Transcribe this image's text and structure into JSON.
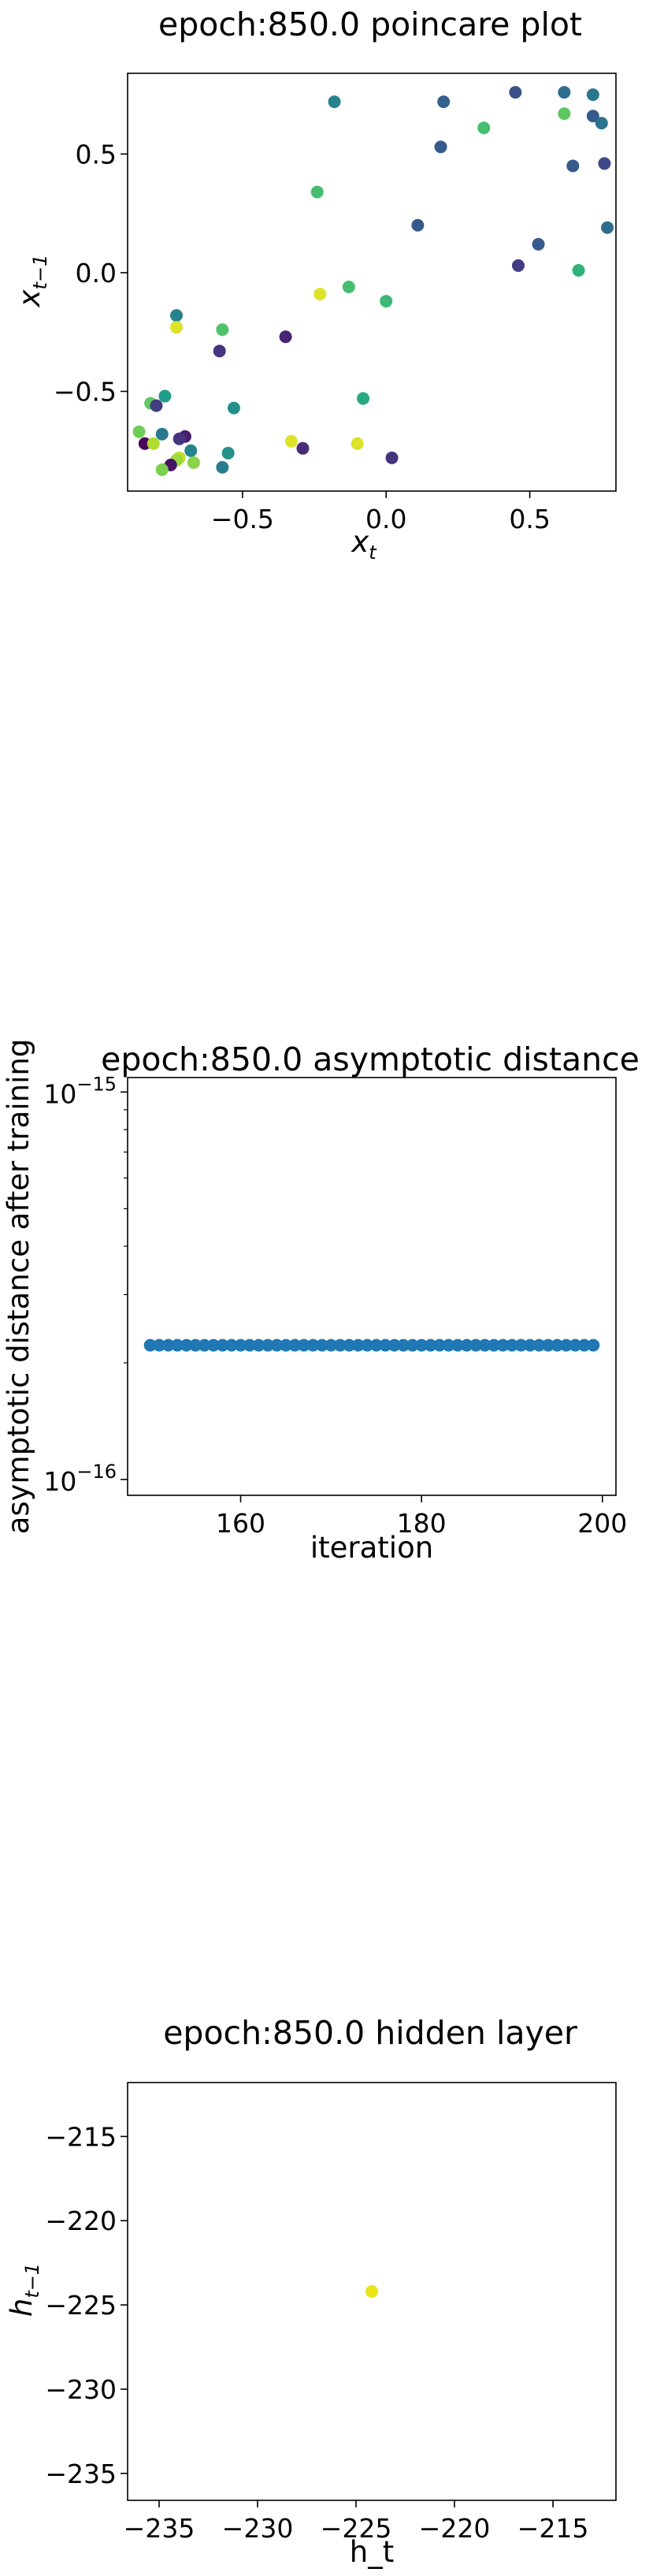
{
  "chart_data": [
    {
      "type": "scatter",
      "title": "epoch:850.0 poincare plot",
      "xlabel": "x",
      "xlabel_sub": "t",
      "ylabel": "x",
      "ylabel_sub": "t−1",
      "xlim": [
        -0.9,
        0.8
      ],
      "ylim": [
        -0.92,
        0.84
      ],
      "xticks": [
        -0.5,
        0.0,
        0.5
      ],
      "xtick_labels": [
        "−0.5",
        "0.0",
        "0.5"
      ],
      "yticks": [
        -0.5,
        0.0,
        0.5
      ],
      "ytick_labels": [
        "−0.5",
        "0.0",
        "0.5"
      ],
      "colormap": "viridis",
      "points": [
        {
          "x": -0.18,
          "y": 0.72,
          "c": 0.45
        },
        {
          "x": 0.2,
          "y": 0.72,
          "c": 0.3
        },
        {
          "x": 0.45,
          "y": 0.76,
          "c": 0.25
        },
        {
          "x": 0.62,
          "y": 0.76,
          "c": 0.35
        },
        {
          "x": 0.72,
          "y": 0.75,
          "c": 0.4
        },
        {
          "x": 0.34,
          "y": 0.61,
          "c": 0.7
        },
        {
          "x": 0.62,
          "y": 0.67,
          "c": 0.75
        },
        {
          "x": 0.72,
          "y": 0.66,
          "c": 0.28
        },
        {
          "x": 0.75,
          "y": 0.63,
          "c": 0.38
        },
        {
          "x": 0.19,
          "y": 0.53,
          "c": 0.28
        },
        {
          "x": 0.65,
          "y": 0.45,
          "c": 0.28
        },
        {
          "x": 0.76,
          "y": 0.46,
          "c": 0.22
        },
        {
          "x": -0.24,
          "y": 0.34,
          "c": 0.7
        },
        {
          "x": 0.11,
          "y": 0.2,
          "c": 0.28
        },
        {
          "x": 0.77,
          "y": 0.19,
          "c": 0.35
        },
        {
          "x": 0.53,
          "y": 0.12,
          "c": 0.28
        },
        {
          "x": 0.46,
          "y": 0.03,
          "c": 0.18
        },
        {
          "x": 0.67,
          "y": 0.01,
          "c": 0.65
        },
        {
          "x": -0.13,
          "y": -0.06,
          "c": 0.7
        },
        {
          "x": -0.23,
          "y": -0.09,
          "c": 0.95
        },
        {
          "x": 0.0,
          "y": -0.12,
          "c": 0.68
        },
        {
          "x": -0.73,
          "y": -0.18,
          "c": 0.45
        },
        {
          "x": -0.73,
          "y": -0.23,
          "c": 0.95
        },
        {
          "x": -0.57,
          "y": -0.24,
          "c": 0.72
        },
        {
          "x": -0.35,
          "y": -0.27,
          "c": 0.1
        },
        {
          "x": -0.58,
          "y": -0.33,
          "c": 0.15
        },
        {
          "x": -0.77,
          "y": -0.52,
          "c": 0.55
        },
        {
          "x": -0.08,
          "y": -0.53,
          "c": 0.6
        },
        {
          "x": -0.82,
          "y": -0.55,
          "c": 0.75
        },
        {
          "x": -0.8,
          "y": -0.56,
          "c": 0.18
        },
        {
          "x": -0.53,
          "y": -0.57,
          "c": 0.5
        },
        {
          "x": -0.86,
          "y": -0.67,
          "c": 0.78
        },
        {
          "x": -0.78,
          "y": -0.68,
          "c": 0.4
        },
        {
          "x": -0.7,
          "y": -0.69,
          "c": 0.08
        },
        {
          "x": -0.72,
          "y": -0.7,
          "c": 0.15
        },
        {
          "x": -0.84,
          "y": -0.72,
          "c": 0.02
        },
        {
          "x": -0.81,
          "y": -0.72,
          "c": 0.88
        },
        {
          "x": -0.33,
          "y": -0.71,
          "c": 0.95
        },
        {
          "x": -0.1,
          "y": -0.72,
          "c": 0.95
        },
        {
          "x": -0.29,
          "y": -0.74,
          "c": 0.12
        },
        {
          "x": -0.68,
          "y": -0.75,
          "c": 0.45
        },
        {
          "x": -0.55,
          "y": -0.76,
          "c": 0.5
        },
        {
          "x": -0.72,
          "y": -0.78,
          "c": 0.9
        },
        {
          "x": 0.02,
          "y": -0.78,
          "c": 0.15
        },
        {
          "x": -0.73,
          "y": -0.79,
          "c": 0.85
        },
        {
          "x": -0.67,
          "y": -0.8,
          "c": 0.82
        },
        {
          "x": -0.75,
          "y": -0.81,
          "c": 0.05
        },
        {
          "x": -0.57,
          "y": -0.82,
          "c": 0.42
        },
        {
          "x": -0.78,
          "y": -0.83,
          "c": 0.8
        }
      ]
    },
    {
      "type": "scatter",
      "title": "epoch:850.0 asymptotic distance",
      "xlabel": "iteration",
      "ylabel": "asymptotic distance after training",
      "yscale": "log",
      "xlim": [
        147.5,
        201.5
      ],
      "ylim": [
        9.1e-17,
        1.09e-15
      ],
      "xticks": [
        160,
        180,
        200
      ],
      "xtick_labels": [
        "160",
        "180",
        "200"
      ],
      "yticks": [
        1e-16,
        1e-15
      ],
      "ytick_base": "10",
      "ytick_exps": [
        "−16",
        "−15"
      ],
      "color": "#1f77b4",
      "x_start": 150,
      "x_end": 199,
      "value": 2.22e-16
    },
    {
      "type": "scatter",
      "title": "epoch:850.0 hidden layer",
      "xlabel": "h_t",
      "ylabel": "h",
      "ylabel_sub": "t−1",
      "xlim": [
        -236.6,
        -211.8
      ],
      "ylim": [
        -236.6,
        -211.8
      ],
      "xticks": [
        -235,
        -230,
        -225,
        -220,
        -215
      ],
      "xtick_labels": [
        "−235",
        "−230",
        "−225",
        "−220",
        "−215"
      ],
      "yticks": [
        -235,
        -230,
        -225,
        -220,
        -215
      ],
      "ytick_labels": [
        "−235",
        "−230",
        "−225",
        "−220",
        "−215"
      ],
      "color": "#e8e419",
      "points": [
        {
          "x": -224.2,
          "y": -224.2
        }
      ]
    }
  ]
}
